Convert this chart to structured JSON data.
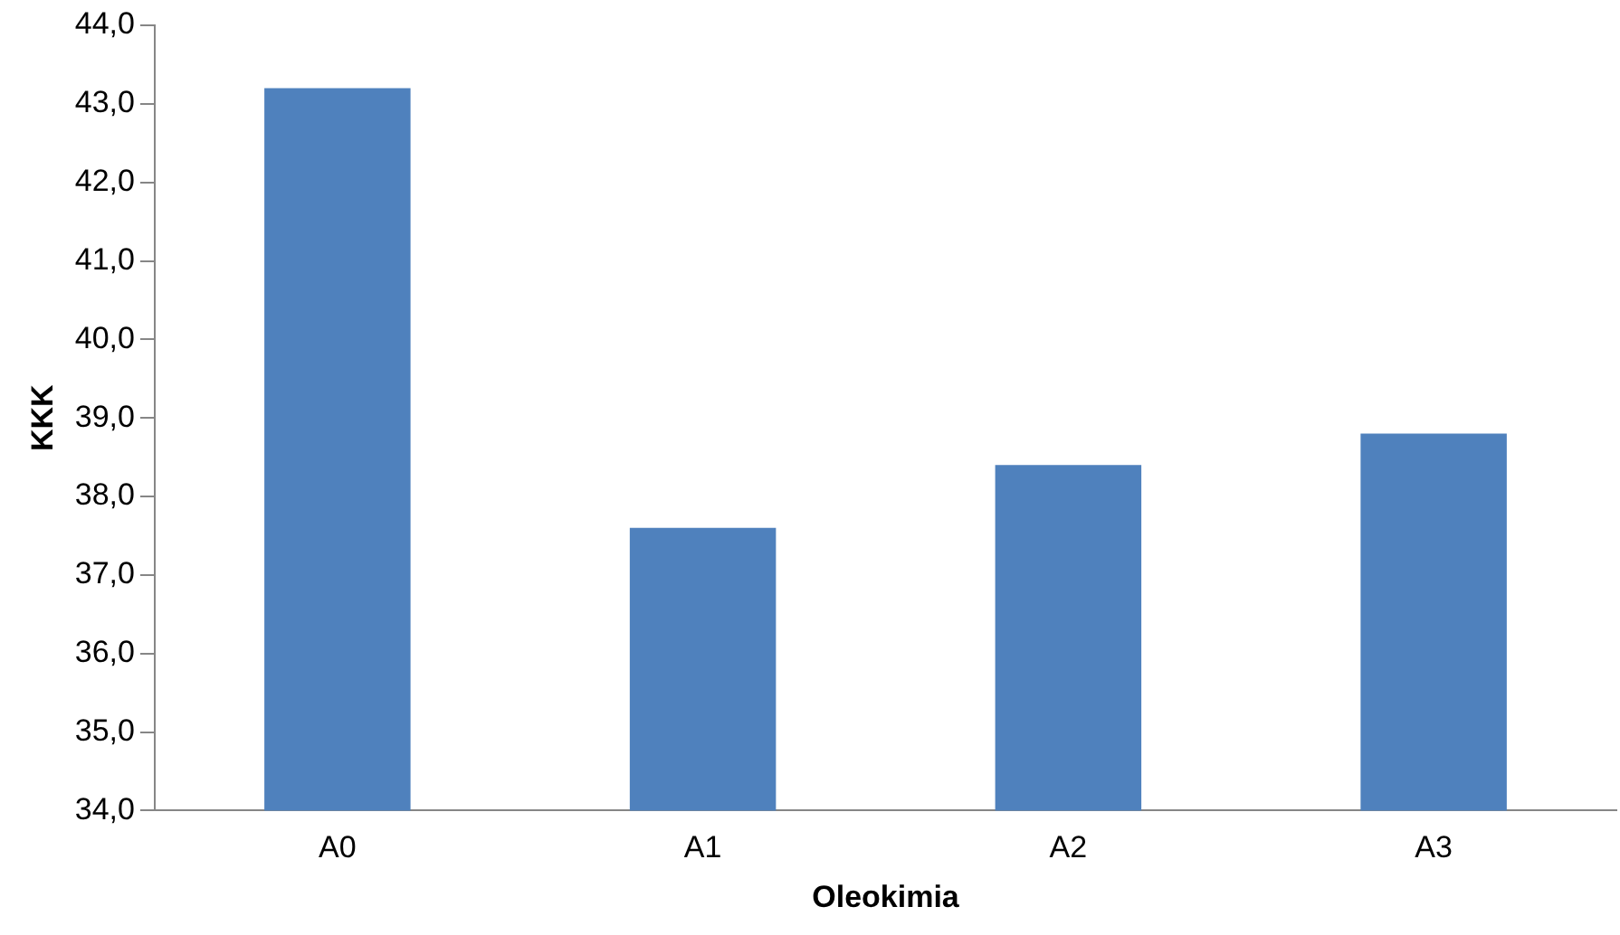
{
  "chart_data": {
    "type": "bar",
    "xlabel": "Oleokimia",
    "ylabel": "KKK",
    "categories": [
      "A0",
      "A1",
      "A2",
      "A3"
    ],
    "values": [
      43.2,
      37.6,
      38.4,
      38.8
    ],
    "color": "#4f81bd",
    "ylim": [
      34,
      44
    ],
    "yticks": [
      {
        "value": 34,
        "label": "34,0"
      },
      {
        "value": 35,
        "label": "35,0"
      },
      {
        "value": 36,
        "label": "36,0"
      },
      {
        "value": 37,
        "label": "37,0"
      },
      {
        "value": 38,
        "label": "38,0"
      },
      {
        "value": 39,
        "label": "39,0"
      },
      {
        "value": 40,
        "label": "40,0"
      },
      {
        "value": 41,
        "label": "41,0"
      },
      {
        "value": 42,
        "label": "42,0"
      },
      {
        "value": 43,
        "label": "43,0"
      },
      {
        "value": 44,
        "label": "44,0"
      }
    ],
    "grid": false,
    "legend": false
  }
}
